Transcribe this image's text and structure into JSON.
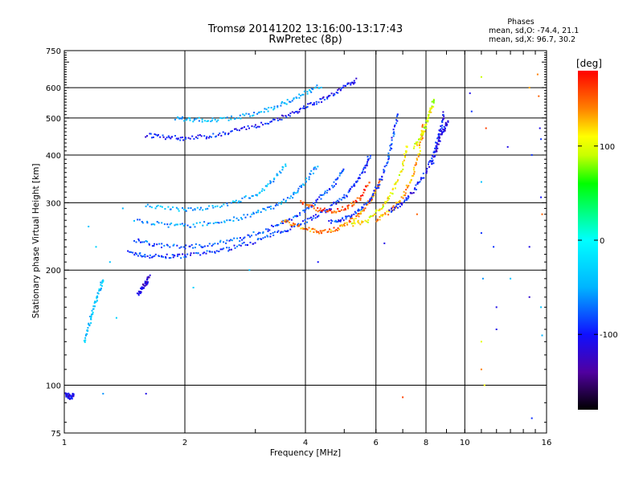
{
  "chart_data": {
    "type": "scatter",
    "title": "Tromsø 20141202 13:16:00-13:17:43",
    "subtitle": "RwPretec (8p)",
    "stats": {
      "heading": "Phases",
      "line_o": "mean, sd,O: -74.4, 21.1",
      "line_x": "mean, sd,X:  96.7, 30.2"
    },
    "xlabel": "Frequency [MHz]",
    "ylabel": "Stationary phase Virtual Height [km]",
    "x_scale": "log",
    "y_scale": "log",
    "xlim": [
      1,
      16
    ],
    "ylim": [
      75,
      750
    ],
    "x_ticks": [
      1,
      2,
      4,
      6,
      8,
      10,
      16
    ],
    "x_tick_labels": [
      "1",
      "2",
      "4",
      "6",
      "8",
      "10",
      "16"
    ],
    "y_ticks": [
      75,
      100,
      200,
      300,
      400,
      500,
      600,
      750
    ],
    "y_tick_labels": [
      "75",
      "100",
      "200",
      "300",
      "400",
      "500",
      "600",
      "750"
    ],
    "grid": true,
    "colorbar": {
      "label": "[deg]",
      "range": [
        -180,
        180
      ],
      "ticks": [
        100,
        0,
        -100
      ],
      "tick_labels": [
        "100",
        "0",
        "-100"
      ],
      "colors": [
        "#000000",
        "#5000a0",
        "#1010ff",
        "#00b4ff",
        "#00ffff",
        "#00ff00",
        "#c8ff00",
        "#ffff00",
        "#ff8000",
        "#ff0000"
      ]
    },
    "traces": [
      {
        "name": "",
        "phase": -90,
        "x": [
          1.45,
          1.6,
          1.8,
          2.0,
          2.3,
          2.6,
          3.0,
          3.4,
          3.8,
          4.2,
          4.6,
          5.0,
          5.3,
          5.6,
          5.8
        ],
        "y": [
          222,
          218,
          217,
          218,
          222,
          228,
          238,
          250,
          262,
          275,
          290,
          310,
          335,
          365,
          400
        ]
      },
      {
        "name": "",
        "phase": -80,
        "x": [
          1.5,
          1.7,
          2.0,
          2.3,
          2.7,
          3.1,
          3.5,
          3.9,
          4.3,
          4.7,
          5.0
        ],
        "y": [
          240,
          232,
          230,
          233,
          240,
          252,
          265,
          282,
          305,
          335,
          370
        ]
      },
      {
        "name": "",
        "phase": -60,
        "x": [
          1.5,
          1.8,
          2.1,
          2.5,
          2.9,
          3.3,
          3.7,
          4.0,
          4.3
        ],
        "y": [
          270,
          262,
          262,
          268,
          278,
          292,
          312,
          340,
          380
        ]
      },
      {
        "name": "",
        "phase": -50,
        "x": [
          1.6,
          1.9,
          2.2,
          2.6,
          3.0,
          3.3,
          3.6
        ],
        "y": [
          295,
          288,
          290,
          298,
          315,
          340,
          380
        ]
      },
      {
        "name": "",
        "phase": 140,
        "x": [
          3.5,
          3.9,
          4.3,
          4.7,
          5.1,
          5.5,
          5.9,
          6.2
        ],
        "y": [
          270,
          258,
          252,
          255,
          265,
          282,
          310,
          350
        ]
      },
      {
        "name": "",
        "phase": 160,
        "x": [
          3.9,
          4.3,
          4.7,
          5.1,
          5.5,
          5.8
        ],
        "y": [
          300,
          288,
          285,
          292,
          310,
          340
        ]
      },
      {
        "name": "",
        "phase": -90,
        "x": [
          4.6,
          5.0,
          5.4,
          5.8,
          6.1,
          6.4,
          6.6,
          6.8
        ],
        "y": [
          268,
          272,
          285,
          305,
          335,
          380,
          440,
          520
        ]
      },
      {
        "name": "",
        "phase": 110,
        "x": [
          5.2,
          5.7,
          6.2,
          6.6,
          7.0,
          7.2
        ],
        "y": [
          262,
          270,
          290,
          320,
          370,
          430
        ]
      },
      {
        "name": "",
        "phase": 130,
        "x": [
          6.0,
          6.5,
          7.0,
          7.4,
          7.7,
          7.9
        ],
        "y": [
          270,
          285,
          310,
          350,
          410,
          490
        ]
      },
      {
        "name": "",
        "phase": -100,
        "x": [
          6.5,
          7.0,
          7.5,
          8.0,
          8.4,
          8.7,
          8.9
        ],
        "y": [
          285,
          300,
          325,
          360,
          410,
          470,
          520
        ]
      },
      {
        "name": "",
        "phase": 100,
        "x": [
          7.5,
          7.8,
          8.0,
          8.2,
          8.4
        ],
        "y": [
          420,
          450,
          480,
          520,
          560
        ]
      },
      {
        "name": "",
        "phase": -110,
        "x": [
          8.3,
          8.5,
          8.7,
          8.9,
          9.1
        ],
        "y": [
          380,
          420,
          450,
          470,
          490
        ]
      },
      {
        "name": "",
        "phase": -100,
        "x": [
          1.6,
          1.8,
          2.0,
          2.3,
          2.6,
          3.0,
          3.4,
          3.8,
          4.2,
          4.6,
          5.0,
          5.4
        ],
        "y": [
          450,
          445,
          442,
          448,
          460,
          475,
          495,
          520,
          545,
          570,
          600,
          630
        ]
      },
      {
        "name": "",
        "phase": -50,
        "x": [
          1.9,
          2.1,
          2.4,
          2.8,
          3.2,
          3.6,
          4.0,
          4.4
        ],
        "y": [
          500,
          495,
          492,
          505,
          525,
          550,
          580,
          610
        ]
      },
      {
        "name": "",
        "phase": -120,
        "x": [
          1.53,
          1.56,
          1.6,
          1.63
        ],
        "y": [
          172,
          178,
          185,
          192
        ]
      },
      {
        "name": "",
        "phase": -40,
        "x": [
          1.12,
          1.15,
          1.18,
          1.22,
          1.25
        ],
        "y": [
          130,
          142,
          158,
          175,
          190
        ]
      },
      {
        "name": "",
        "phase": -110,
        "x": [
          1.0,
          1.02,
          1.04,
          1.06
        ],
        "y": [
          95,
          94,
          93,
          95
        ]
      }
    ],
    "scatter_points": [
      {
        "x": 1.15,
        "y": 260,
        "phase": -40
      },
      {
        "x": 1.2,
        "y": 230,
        "phase": -30
      },
      {
        "x": 1.3,
        "y": 210,
        "phase": -40
      },
      {
        "x": 1.4,
        "y": 290,
        "phase": -50
      },
      {
        "x": 1.35,
        "y": 150,
        "phase": -30
      },
      {
        "x": 1.25,
        "y": 95,
        "phase": -60
      },
      {
        "x": 1.6,
        "y": 95,
        "phase": -110
      },
      {
        "x": 2.9,
        "y": 200,
        "phase": -40
      },
      {
        "x": 2.1,
        "y": 180,
        "phase": -30
      },
      {
        "x": 4.3,
        "y": 210,
        "phase": -100
      },
      {
        "x": 6.3,
        "y": 235,
        "phase": -110
      },
      {
        "x": 7.0,
        "y": 93,
        "phase": 160
      },
      {
        "x": 7.6,
        "y": 280,
        "phase": 150
      },
      {
        "x": 10.3,
        "y": 580,
        "phase": -110
      },
      {
        "x": 10.4,
        "y": 520,
        "phase": -90
      },
      {
        "x": 11.0,
        "y": 640,
        "phase": 90
      },
      {
        "x": 11.0,
        "y": 340,
        "phase": -40
      },
      {
        "x": 11.0,
        "y": 250,
        "phase": -90
      },
      {
        "x": 11.1,
        "y": 190,
        "phase": -60
      },
      {
        "x": 11.0,
        "y": 130,
        "phase": 100
      },
      {
        "x": 11.0,
        "y": 110,
        "phase": 140
      },
      {
        "x": 11.2,
        "y": 100,
        "phase": 110
      },
      {
        "x": 11.3,
        "y": 470,
        "phase": 160
      },
      {
        "x": 11.8,
        "y": 230,
        "phase": -90
      },
      {
        "x": 12.0,
        "y": 160,
        "phase": -110
      },
      {
        "x": 12.0,
        "y": 140,
        "phase": -110
      },
      {
        "x": 12.8,
        "y": 420,
        "phase": -110
      },
      {
        "x": 13.0,
        "y": 190,
        "phase": -40
      },
      {
        "x": 14.5,
        "y": 600,
        "phase": 130
      },
      {
        "x": 14.5,
        "y": 230,
        "phase": -110
      },
      {
        "x": 14.7,
        "y": 400,
        "phase": -90
      },
      {
        "x": 14.5,
        "y": 170,
        "phase": -120
      },
      {
        "x": 14.7,
        "y": 82,
        "phase": -90
      },
      {
        "x": 15.2,
        "y": 650,
        "phase": 140
      },
      {
        "x": 15.3,
        "y": 570,
        "phase": 150
      },
      {
        "x": 15.4,
        "y": 470,
        "phase": -110
      },
      {
        "x": 15.5,
        "y": 440,
        "phase": -90
      },
      {
        "x": 15.5,
        "y": 310,
        "phase": -100
      },
      {
        "x": 15.6,
        "y": 280,
        "phase": 150
      },
      {
        "x": 15.5,
        "y": 160,
        "phase": -40
      },
      {
        "x": 15.6,
        "y": 135,
        "phase": -50
      }
    ]
  }
}
